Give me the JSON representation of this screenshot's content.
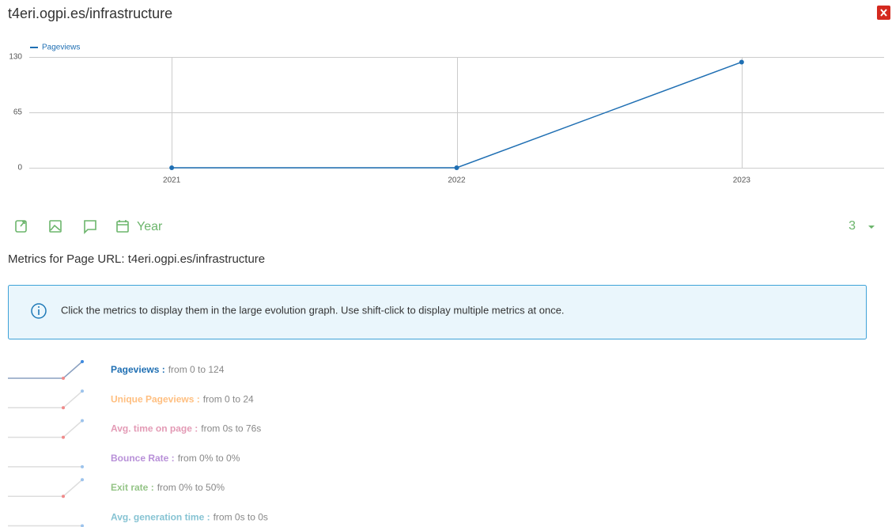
{
  "title": "t4eri.ogpi.es/infrastructure",
  "chart_data": {
    "type": "line",
    "x": [
      "2021",
      "2022",
      "2023"
    ],
    "series": [
      {
        "name": "Pageviews",
        "color": "#1f6fb3",
        "values": [
          0,
          0,
          124
        ]
      }
    ],
    "ylim": [
      0,
      130
    ],
    "yticks": [
      0,
      65,
      130
    ],
    "grid": true,
    "legend": "top-left"
  },
  "toolbar": {
    "period": "Year",
    "limit": "3"
  },
  "metrics_heading": "Metrics for Page URL: t4eri.ogpi.es/infrastructure",
  "info": "Click the metrics to display them in the large evolution graph. Use shift-click to display multiple metrics at once.",
  "metrics": [
    {
      "label": "Pageviews :",
      "detail": "from 0 to 124",
      "color": "#1f6fb3"
    },
    {
      "label": "Unique Pageviews :",
      "detail": "from 0 to 24",
      "color": "#ffbf80"
    },
    {
      "label": "Avg. time on page :",
      "detail": "from 0s to 76s",
      "color": "#e39ab5"
    },
    {
      "label": "Bounce Rate :",
      "detail": "from 0% to 0%",
      "color": "#b890d8"
    },
    {
      "label": "Exit rate :",
      "detail": "from 0% to 50%",
      "color": "#94c486"
    },
    {
      "label": "Avg. generation time :",
      "detail": "from 0s to 0s",
      "color": "#86c3d3"
    }
  ]
}
